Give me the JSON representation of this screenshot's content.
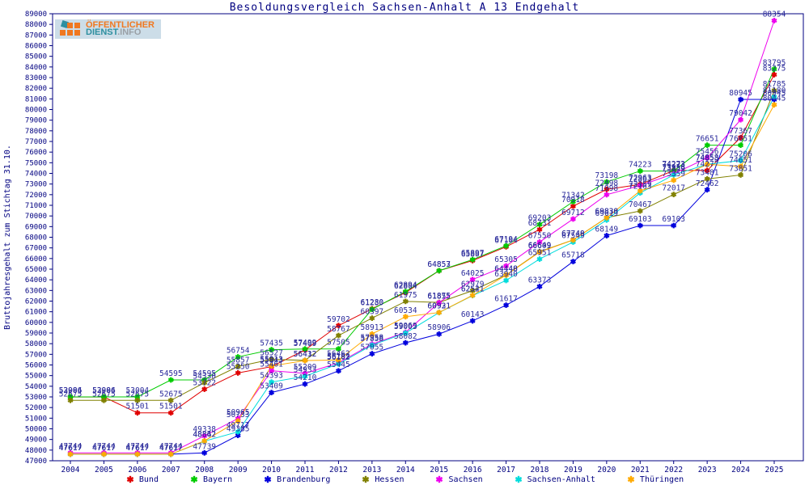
{
  "page": {
    "title": "Besoldungsvergleich Sachsen-Anhalt A 13 Endgehalt"
  },
  "logo": {
    "text_top": "ÖFFENTLICHER",
    "text_bottom_1": "DIENST",
    "text_bottom_2": ".INFO"
  },
  "chart_data": {
    "type": "line",
    "title": "Besoldungsvergleich Sachsen-Anhalt A 13 Endgehalt",
    "xlabel": "",
    "ylabel": "Bruttojahresgehalt zum Stichtag 31.10.",
    "ylim": [
      47000,
      89000
    ],
    "ytick_step": 1000,
    "grid": false,
    "legend_position": "bottom",
    "point_labels": true,
    "label_color": "#2b2b9b",
    "axis_color": "#000080",
    "x": [
      2004,
      2005,
      2006,
      2007,
      2008,
      2009,
      2010,
      2011,
      2012,
      2013,
      2014,
      2015,
      2016,
      2017,
      2018,
      2019,
      2020,
      2021,
      2022,
      2023,
      2024,
      2025
    ],
    "series": [
      {
        "name": "Bund",
        "color": "#e00000",
        "values": [
          52986,
          52986,
          51501,
          51501,
          53722,
          55250,
          55843,
          57409,
          59702,
          61280,
          62804,
          64853,
          65807,
          67104,
          68731,
          70918,
          72498,
          72963,
          74273,
          74277,
          77367,
          83275
        ]
      },
      {
        "name": "Bayern",
        "color": "#00cc00",
        "values": [
          53004,
          53004,
          53004,
          54595,
          54595,
          56754,
          57435,
          57499,
          57505,
          61230,
          62894,
          64857,
          65897,
          67194,
          69203,
          71342,
          73198,
          74223,
          74223,
          76651,
          76651,
          83795
        ]
      },
      {
        "name": "Brandenburg",
        "color": "#0000dd",
        "values": [
          47617,
          47617,
          47617,
          47617,
          47739,
          49385,
          53409,
          54210,
          55445,
          57055,
          58082,
          58906,
          60143,
          61617,
          63373,
          65718,
          68149,
          69103,
          69103,
          72462,
          80945,
          80945
        ]
      },
      {
        "name": "Hessen",
        "color": "#808000",
        "values": [
          52675,
          52675,
          52675,
          52675,
          54330,
          55857,
          56527,
          56432,
          58767,
          60397,
          61975,
          61875,
          62979,
          64448,
          66649,
          67749,
          69838,
          70467,
          72017,
          73481,
          73851,
          81785
        ]
      },
      {
        "name": "Sachsen",
        "color": "#ee00ee",
        "values": [
          47744,
          47744,
          47744,
          47744,
          49338,
          50965,
          55461,
          55209,
          56192,
          57958,
          59069,
          61855,
          64025,
          65305,
          67550,
          69712,
          71998,
          72863,
          73958,
          75456,
          79042,
          88354
        ]
      },
      {
        "name": "Sachsen-Anhalt",
        "color": "#00dcdc",
        "values": [
          47617,
          47617,
          47617,
          47617,
          48842,
          49717,
          54393,
          54933,
          56102,
          57858,
          59003,
          60921,
          62521,
          63940,
          65951,
          67549,
          69619,
          72163,
          73859,
          74858,
          75206,
          81180
        ]
      },
      {
        "name": "Thüringen",
        "color": "#ffaa00",
        "values": [
          47617,
          47617,
          47617,
          47617,
          48862,
          50733,
          55913,
          56412,
          56462,
          58913,
          60534,
          60931,
          62541,
          64440,
          66609,
          67740,
          69830,
          72359,
          73359,
          74853,
          74651,
          80445
        ]
      }
    ]
  }
}
